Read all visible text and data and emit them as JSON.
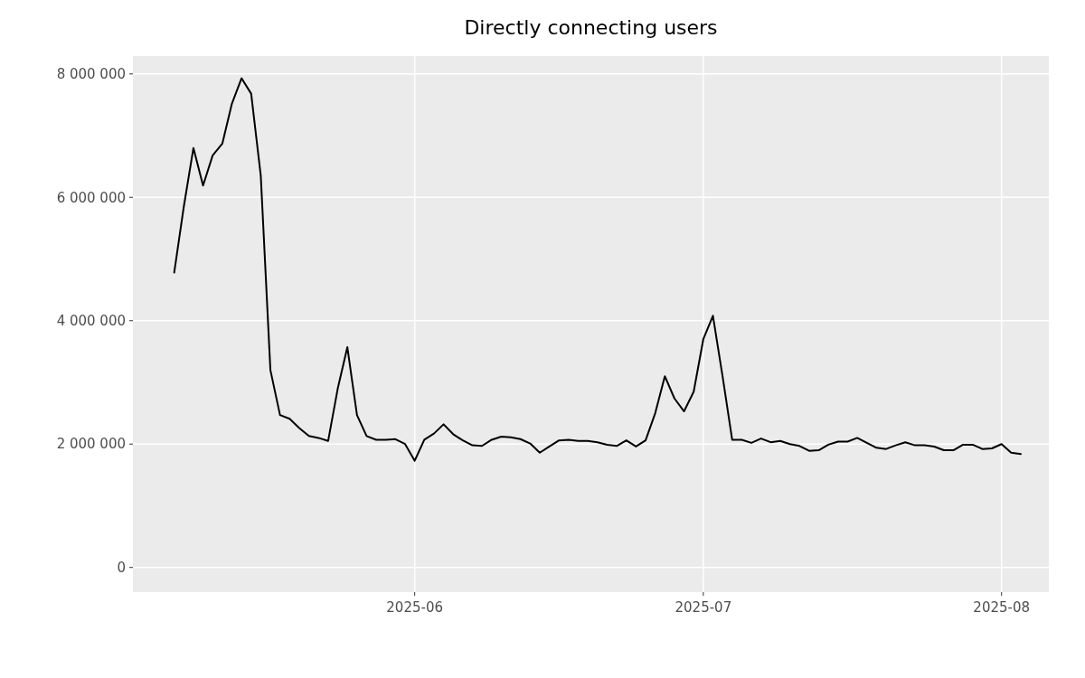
{
  "chart_data": {
    "type": "line",
    "title": "Directly connecting users",
    "x": [
      "2025-05-07",
      "2025-05-08",
      "2025-05-09",
      "2025-05-10",
      "2025-05-11",
      "2025-05-12",
      "2025-05-13",
      "2025-05-14",
      "2025-05-15",
      "2025-05-16",
      "2025-05-17",
      "2025-05-18",
      "2025-05-19",
      "2025-05-20",
      "2025-05-21",
      "2025-05-22",
      "2025-05-23",
      "2025-05-24",
      "2025-05-25",
      "2025-05-26",
      "2025-05-27",
      "2025-05-28",
      "2025-05-29",
      "2025-05-30",
      "2025-05-31",
      "2025-06-01",
      "2025-06-02",
      "2025-06-03",
      "2025-06-04",
      "2025-06-05",
      "2025-06-06",
      "2025-06-07",
      "2025-06-08",
      "2025-06-09",
      "2025-06-10",
      "2025-06-11",
      "2025-06-12",
      "2025-06-13",
      "2025-06-14",
      "2025-06-15",
      "2025-06-16",
      "2025-06-17",
      "2025-06-18",
      "2025-06-19",
      "2025-06-20",
      "2025-06-21",
      "2025-06-22",
      "2025-06-23",
      "2025-06-24",
      "2025-06-25",
      "2025-06-26",
      "2025-06-27",
      "2025-06-28",
      "2025-06-29",
      "2025-06-30",
      "2025-07-01",
      "2025-07-02",
      "2025-07-03",
      "2025-07-04",
      "2025-07-05",
      "2025-07-06",
      "2025-07-07",
      "2025-07-08",
      "2025-07-09",
      "2025-07-10",
      "2025-07-11",
      "2025-07-12",
      "2025-07-13",
      "2025-07-14",
      "2025-07-15",
      "2025-07-16",
      "2025-07-17",
      "2025-07-18",
      "2025-07-19",
      "2025-07-20",
      "2025-07-21",
      "2025-07-22",
      "2025-07-23",
      "2025-07-24",
      "2025-07-25",
      "2025-07-26",
      "2025-07-27",
      "2025-07-28",
      "2025-07-29",
      "2025-07-30",
      "2025-07-31",
      "2025-08-01",
      "2025-08-02",
      "2025-08-03"
    ],
    "series": [
      {
        "color": "#000000",
        "values": [
          4780000,
          5850000,
          6800000,
          6190000,
          6680000,
          6870000,
          7520000,
          7930000,
          7680000,
          6350000,
          3200000,
          2470000,
          2410000,
          2260000,
          2130000,
          2100000,
          2050000,
          2900000,
          3570000,
          2470000,
          2130000,
          2070000,
          2070000,
          2080000,
          2000000,
          1730000,
          2070000,
          2170000,
          2320000,
          2160000,
          2060000,
          1980000,
          1970000,
          2070000,
          2120000,
          2110000,
          2080000,
          2010000,
          1860000,
          1960000,
          2060000,
          2070000,
          2050000,
          2050000,
          2030000,
          1990000,
          1970000,
          2060000,
          1960000,
          2060000,
          2500000,
          3100000,
          2740000,
          2530000,
          2850000,
          3700000,
          4080000,
          3100000,
          2070000,
          2070000,
          2020000,
          2090000,
          2030000,
          2050000,
          2000000,
          1970000,
          1890000,
          1900000,
          1990000,
          2040000,
          2040000,
          2100000,
          2020000,
          1940000,
          1920000,
          1980000,
          2030000,
          1980000,
          1980000,
          1960000,
          1900000,
          1900000,
          1990000,
          1990000,
          1920000,
          1930000,
          2000000,
          1860000,
          1840000
        ]
      }
    ],
    "xlim": [
      "2025-05-02T17:00",
      "2025-08-05T22:00"
    ],
    "xticks": [
      "2025-06",
      "2025-07",
      "2025-08"
    ],
    "ylim": [
      -400000,
      8290000
    ],
    "yticks": [
      {
        "value": 0,
        "label": "0"
      },
      {
        "value": 2000000,
        "label": "2 000 000"
      },
      {
        "value": 4000000,
        "label": "4 000 000"
      },
      {
        "value": 6000000,
        "label": "6 000 000"
      },
      {
        "value": 8000000,
        "label": "8 000 000"
      }
    ],
    "grid": true,
    "line_style": "solid"
  }
}
